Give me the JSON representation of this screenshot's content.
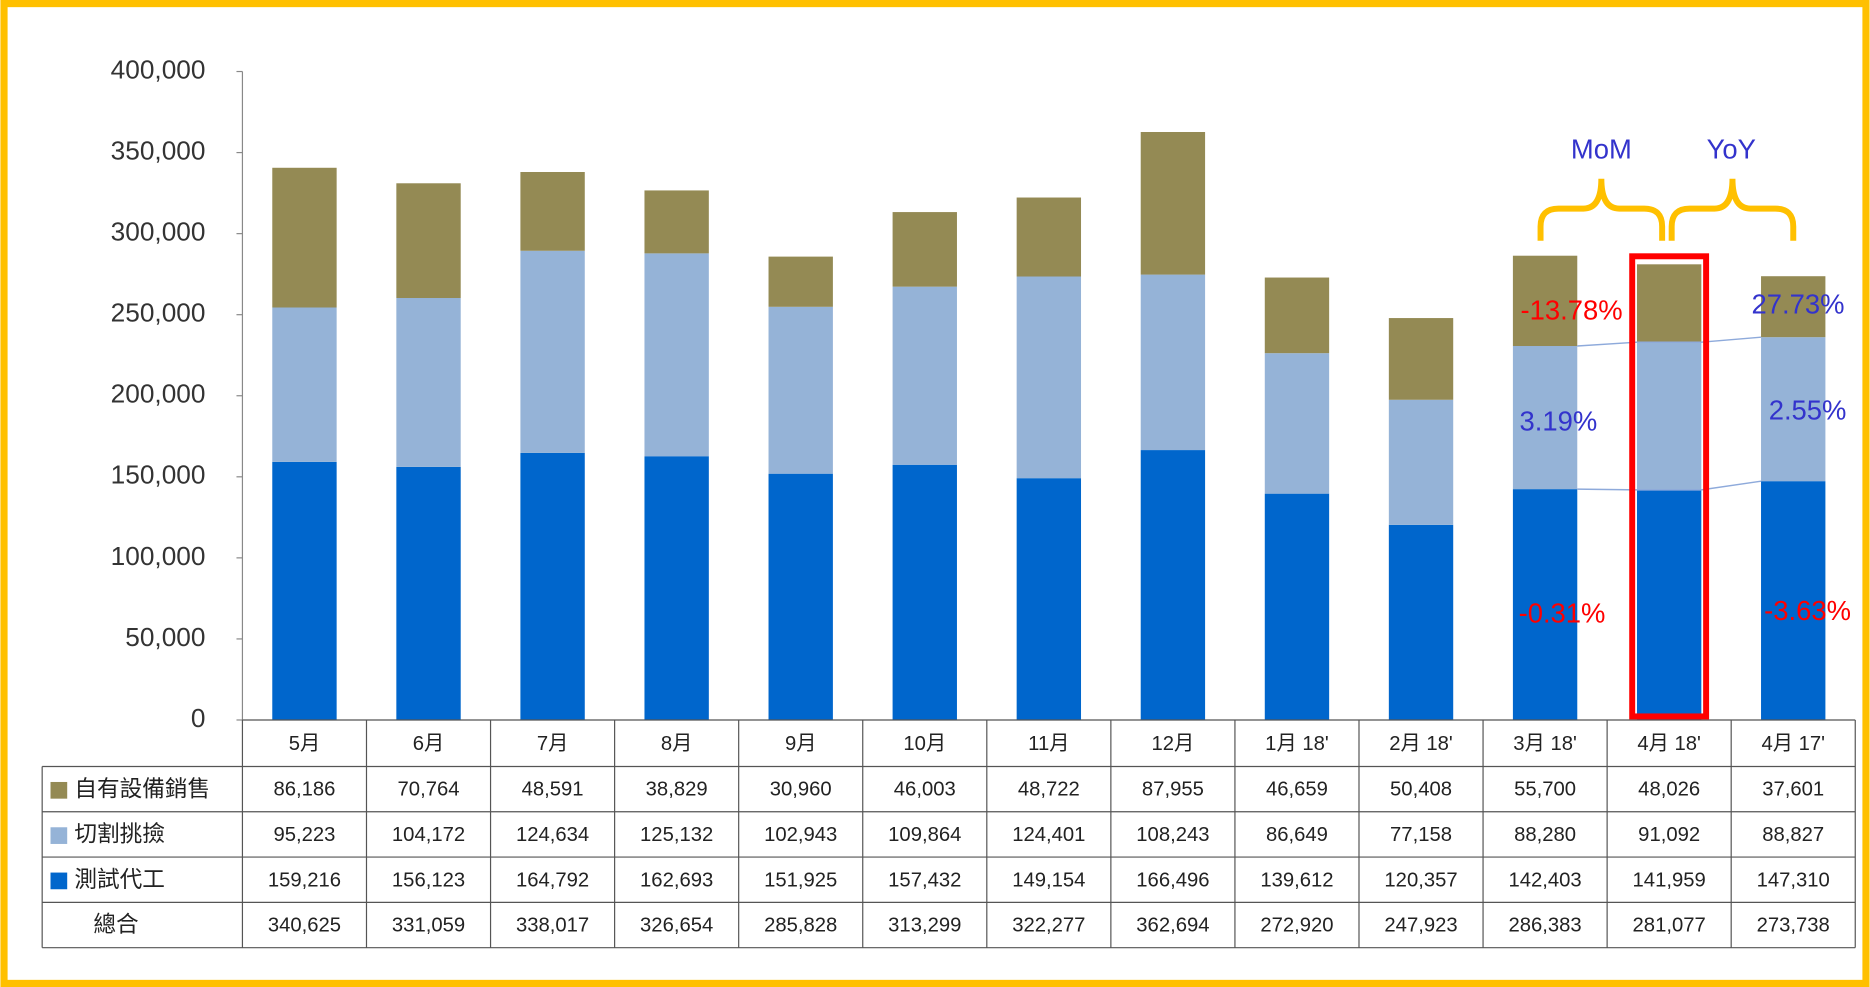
{
  "chart_data": {
    "type": "bar",
    "stacked": true,
    "categories": [
      "5月",
      "6月",
      "7月",
      "8月",
      "9月",
      "10月",
      "11月",
      "12月",
      "1月 18'",
      "2月 18'",
      "3月 18'",
      "4月 18'",
      "4月 17'"
    ],
    "series": [
      {
        "name": "自有設備銷售",
        "color": "#948a54",
        "values": [
          86186,
          70764,
          48591,
          38829,
          30960,
          46003,
          48722,
          87955,
          46659,
          50408,
          55700,
          48026,
          37601
        ],
        "value_labels": [
          "86,186",
          "70,764",
          "48,591",
          "38,829",
          "30,960",
          "46,003",
          "48,722",
          "87,955",
          "46,659",
          "50,408",
          "55,700",
          "48,026",
          "37,601"
        ]
      },
      {
        "name": "切割挑撿",
        "color": "#95b3d7",
        "values": [
          95223,
          104172,
          124634,
          125132,
          102943,
          109864,
          124401,
          108243,
          86649,
          77158,
          88280,
          91092,
          88827
        ],
        "value_labels": [
          "95,223",
          "104,172",
          "124,634",
          "125,132",
          "102,943",
          "109,864",
          "124,401",
          "108,243",
          "86,649",
          "77,158",
          "88,280",
          "91,092",
          "88,827"
        ]
      },
      {
        "name": "測試代工",
        "color": "#0066cc",
        "values": [
          159216,
          156123,
          164792,
          162693,
          151925,
          157432,
          149154,
          166496,
          139612,
          120357,
          142403,
          141959,
          147310
        ],
        "value_labels": [
          "159,216",
          "156,123",
          "164,792",
          "162,693",
          "151,925",
          "157,432",
          "149,154",
          "166,496",
          "139,612",
          "120,357",
          "142,403",
          "141,959",
          "147,310"
        ]
      }
    ],
    "totals": {
      "name": "總合",
      "values": [
        340625,
        331059,
        338017,
        326654,
        285828,
        313299,
        322277,
        362694,
        272920,
        247923,
        286383,
        281077,
        273738
      ],
      "value_labels": [
        "340,625",
        "331,059",
        "338,017",
        "326,654",
        "285,828",
        "313,299",
        "322,277",
        "362,694",
        "272,920",
        "247,923",
        "286,383",
        "281,077",
        "273,738"
      ]
    },
    "ylim": [
      0,
      400000
    ],
    "yticks": [
      0,
      {
        "value": 50000,
        "label": "50,000"
      },
      {
        "value": 100000,
        "label": "100,000"
      },
      {
        "value": 150000,
        "label": "150,000"
      },
      {
        "value": 200000,
        "label": "200,000"
      },
      {
        "value": 250000,
        "label": "250,000"
      },
      {
        "value": 300000,
        "label": "300,000"
      },
      {
        "value": 350000,
        "label": "350,000"
      },
      {
        "value": 400000,
        "label": "400,000"
      }
    ],
    "annotations": [
      "MoM",
      "YoY",
      "-13.78%",
      "27.73%",
      "3.19%",
      "2.55%",
      "-0.31%",
      "-3.63%"
    ]
  }
}
